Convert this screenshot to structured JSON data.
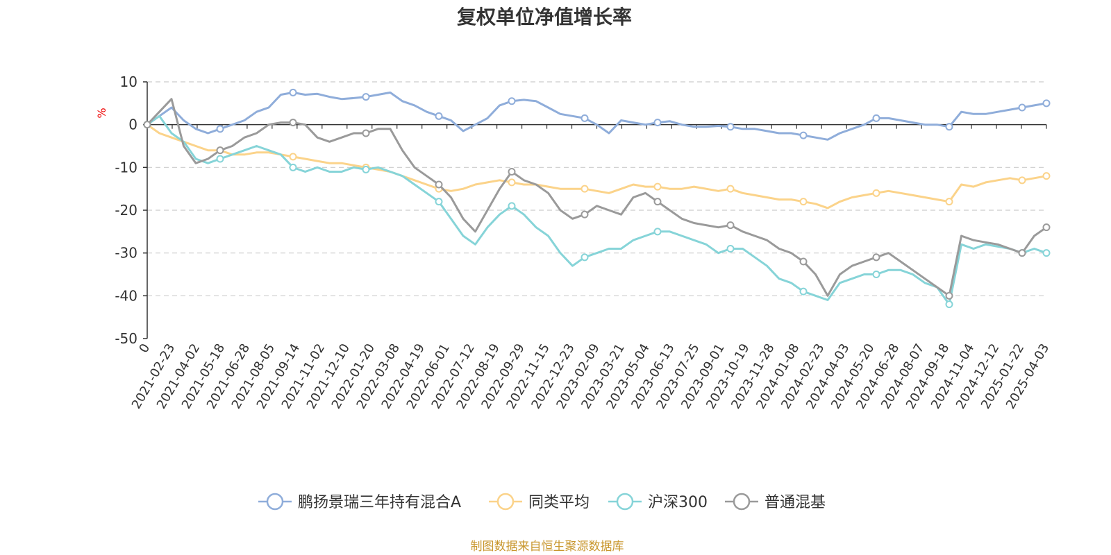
{
  "chart_data": {
    "type": "line",
    "title": "复权单位净值增长率",
    "ylabel": "%",
    "xlabel": "",
    "ylim": [
      -50,
      10
    ],
    "yticks": [
      10,
      0,
      -10,
      -20,
      -30,
      -40,
      -50
    ],
    "grid": true,
    "legend_position": "bottom-center",
    "x_tick_labels": [
      "0",
      "2021-02-23",
      "2021-04-02",
      "2021-05-18",
      "2021-06-28",
      "2021-08-05",
      "2021-09-14",
      "2021-11-02",
      "2021-12-10",
      "2022-01-20",
      "2022-03-08",
      "2022-04-19",
      "2022-06-01",
      "2022-07-12",
      "2022-08-19",
      "2022-09-29",
      "2022-11-15",
      "2022-12-23",
      "2023-02-09",
      "2023-03-21",
      "2023-05-04",
      "2023-06-13",
      "2023-07-25",
      "2023-09-01",
      "2023-10-19",
      "2023-11-28",
      "2024-01-08",
      "2024-02-23",
      "2024-04-03",
      "2024-05-20",
      "2024-06-28",
      "2024-08-07",
      "2024-09-18",
      "2024-11-04",
      "2024-12-12",
      "2025-01-22",
      "2025-04-03"
    ],
    "series": [
      {
        "name": "鹏扬景瑞三年持有混合A",
        "color": "#8fadda",
        "values": [
          0,
          2,
          4,
          1,
          -1,
          -2,
          -1,
          0,
          1,
          3,
          4,
          7,
          7.5,
          7,
          7.2,
          6.5,
          6,
          6.2,
          6.5,
          7,
          7.5,
          5.5,
          4.5,
          3,
          2,
          1,
          -1.5,
          0,
          1.5,
          4.5,
          5.5,
          5.8,
          5.5,
          4,
          2.5,
          2,
          1.5,
          0,
          -2,
          1,
          0.5,
          0,
          0.5,
          0.8,
          0,
          -0.5,
          -0.5,
          -0.3,
          -0.5,
          -1,
          -1,
          -1.5,
          -2,
          -2,
          -2.5,
          -3,
          -3.5,
          -2,
          -1,
          0,
          1.5,
          1.5,
          1,
          0.5,
          0,
          0,
          -0.5,
          3,
          2.5,
          2.5,
          3,
          3.5,
          4,
          4.5,
          5
        ]
      },
      {
        "name": "同类平均",
        "color": "#fbd38a",
        "values": [
          0,
          -2,
          -3,
          -4,
          -5,
          -6,
          -6,
          -7,
          -7,
          -6.5,
          -6.5,
          -7,
          -7.5,
          -8,
          -8.5,
          -9,
          -9,
          -9.5,
          -10,
          -10.5,
          -11,
          -12,
          -13,
          -14,
          -15,
          -15.5,
          -15,
          -14,
          -13.5,
          -13,
          -13.5,
          -14,
          -14,
          -14.5,
          -15,
          -15,
          -15,
          -15.5,
          -16,
          -15,
          -14,
          -14.5,
          -14.5,
          -15,
          -15,
          -14.5,
          -15,
          -15.5,
          -15,
          -16,
          -16.5,
          -17,
          -17.5,
          -17.5,
          -18,
          -18.5,
          -19.5,
          -18,
          -17,
          -16.5,
          -16,
          -15.5,
          -16,
          -16.5,
          -17,
          -17.5,
          -18,
          -14,
          -14.5,
          -13.5,
          -13,
          -12.5,
          -13,
          -12.5,
          -12
        ]
      },
      {
        "name": "沪深300",
        "color": "#86d4d8",
        "values": [
          0,
          2,
          -2,
          -4,
          -8,
          -9,
          -8,
          -7,
          -6,
          -5,
          -6,
          -7,
          -10,
          -11,
          -10,
          -11,
          -11,
          -10,
          -10.5,
          -10,
          -11,
          -12,
          -14,
          -16,
          -18,
          -22,
          -26,
          -28,
          -24,
          -21,
          -19,
          -21,
          -24,
          -26,
          -30,
          -33,
          -31,
          -30,
          -29,
          -29,
          -27,
          -26,
          -25,
          -25,
          -26,
          -27,
          -28,
          -30,
          -29,
          -29,
          -31,
          -33,
          -36,
          -37,
          -39,
          -40,
          -41,
          -37,
          -36,
          -35,
          -35,
          -34,
          -34,
          -35,
          -37,
          -38,
          -42,
          -28,
          -29,
          -28,
          -28.5,
          -29,
          -30,
          -29,
          -30
        ]
      },
      {
        "name": "普通混基",
        "color": "#9a9a9a",
        "values": [
          0,
          3,
          6,
          -5,
          -9,
          -8,
          -6,
          -5,
          -3,
          -2,
          0,
          0.5,
          0.5,
          0,
          -3,
          -4,
          -3,
          -2,
          -2,
          -1,
          -1,
          -6,
          -10,
          -12,
          -14,
          -17,
          -22,
          -25,
          -20,
          -15,
          -11,
          -13,
          -14,
          -16,
          -20,
          -22,
          -21,
          -19,
          -20,
          -21,
          -17,
          -16,
          -18,
          -20,
          -22,
          -23,
          -23.5,
          -24,
          -23.5,
          -25,
          -26,
          -27,
          -29,
          -30,
          -32,
          -35,
          -40,
          -35,
          -33,
          -32,
          -31,
          -30,
          -32,
          -34,
          -36,
          -38,
          -40,
          -26,
          -27,
          -27.5,
          -28,
          -29,
          -30,
          -26,
          -24
        ]
      }
    ],
    "source_note": "制图数据来自恒生聚源数据库"
  }
}
